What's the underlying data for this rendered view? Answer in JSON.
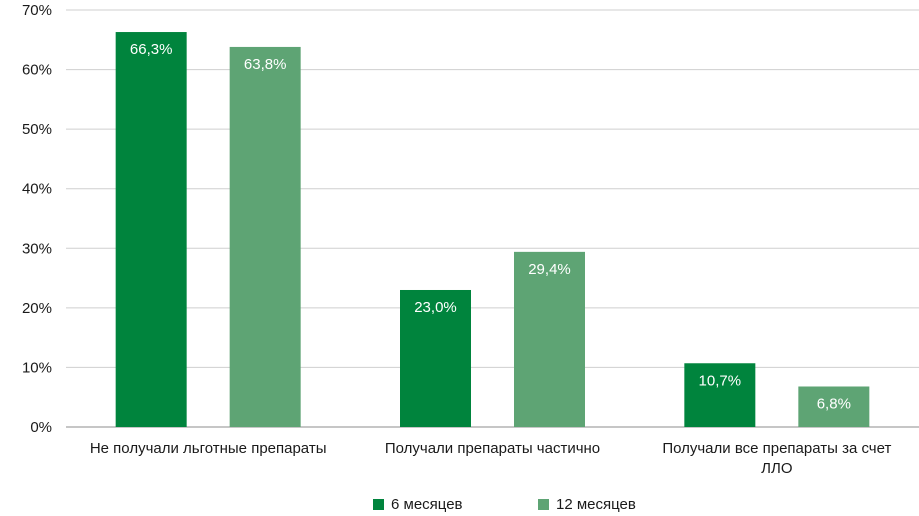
{
  "chart_data": {
    "type": "bar",
    "categories": [
      [
        "Не получали льготные препараты"
      ],
      [
        "Получали препараты частично"
      ],
      [
        "Получали все препараты за счет",
        "ЛЛО"
      ]
    ],
    "series": [
      {
        "name": "6 месяцев",
        "color": "#00843d",
        "values": [
          66.3,
          23.0,
          10.7
        ],
        "labels": [
          "66,3%",
          "23,0%",
          "10,7%"
        ]
      },
      {
        "name": "12 месяцев",
        "color": "#5ea474",
        "values": [
          63.8,
          29.4,
          6.8
        ],
        "labels": [
          "63,8%",
          "29,4%",
          "6,8%"
        ]
      }
    ],
    "ylim": [
      0,
      70
    ],
    "yticks": [
      0,
      10,
      20,
      30,
      40,
      50,
      60,
      70
    ],
    "ytick_labels": [
      "0%",
      "10%",
      "20%",
      "30%",
      "40%",
      "50%",
      "60%",
      "70%"
    ],
    "grid": true,
    "legend_position": "bottom"
  }
}
